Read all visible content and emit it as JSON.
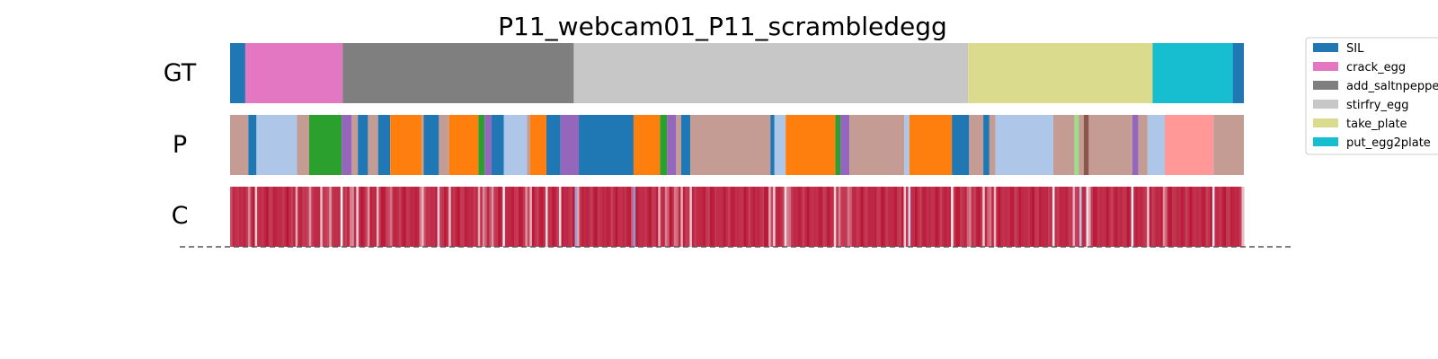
{
  "chart_data": {
    "type": "segmentation_timeline",
    "title": "P11_webcam01_P11_scrambledegg",
    "rows": [
      "GT",
      "P",
      "C"
    ],
    "x_range": [
      0,
      1000
    ],
    "legend": {
      "placement": "top-right",
      "entries": [
        {
          "label": "SIL",
          "color": "#1f77b4"
        },
        {
          "label": "crack_egg",
          "color": "#e377c2"
        },
        {
          "label": "add_saltnpepper",
          "color": "#7f7f7f"
        },
        {
          "label": "stirfry_egg",
          "color": "#c7c7c7"
        },
        {
          "label": "take_plate",
          "color": "#dbdb8d"
        },
        {
          "label": "put_egg2plate",
          "color": "#17becf"
        }
      ]
    },
    "gt_segments": [
      {
        "start": 0,
        "end": 15,
        "color": "#1f77b4"
      },
      {
        "start": 15,
        "end": 111,
        "color": "#e377c2"
      },
      {
        "start": 111,
        "end": 339,
        "color": "#7f7f7f"
      },
      {
        "start": 339,
        "end": 728,
        "color": "#c7c7c7"
      },
      {
        "start": 728,
        "end": 910,
        "color": "#dbdb8d"
      },
      {
        "start": 910,
        "end": 989,
        "color": "#17becf"
      },
      {
        "start": 989,
        "end": 1000,
        "color": "#1f77b4"
      }
    ],
    "p_segments": [
      {
        "start": 0,
        "end": 18,
        "color": "#c49c94"
      },
      {
        "start": 18,
        "end": 26,
        "color": "#1f77b4"
      },
      {
        "start": 26,
        "end": 66,
        "color": "#aec7e8"
      },
      {
        "start": 66,
        "end": 78,
        "color": "#c49c94"
      },
      {
        "start": 78,
        "end": 110,
        "color": "#2ca02c"
      },
      {
        "start": 110,
        "end": 120,
        "color": "#9467bd"
      },
      {
        "start": 120,
        "end": 126,
        "color": "#c49c94"
      },
      {
        "start": 126,
        "end": 136,
        "color": "#1f77b4"
      },
      {
        "start": 136,
        "end": 146,
        "color": "#c49c94"
      },
      {
        "start": 146,
        "end": 158,
        "color": "#1f77b4"
      },
      {
        "start": 158,
        "end": 189,
        "color": "#ff7f0e"
      },
      {
        "start": 189,
        "end": 191,
        "color": "#c49c94"
      },
      {
        "start": 191,
        "end": 206,
        "color": "#1f77b4"
      },
      {
        "start": 206,
        "end": 216,
        "color": "#c49c94"
      },
      {
        "start": 216,
        "end": 245,
        "color": "#ff7f0e"
      },
      {
        "start": 245,
        "end": 251,
        "color": "#2ca02c"
      },
      {
        "start": 251,
        "end": 258,
        "color": "#9467bd"
      },
      {
        "start": 258,
        "end": 270,
        "color": "#1f77b4"
      },
      {
        "start": 270,
        "end": 293,
        "color": "#aec7e8"
      },
      {
        "start": 293,
        "end": 296,
        "color": "#c49c94"
      },
      {
        "start": 296,
        "end": 312,
        "color": "#ff7f0e"
      },
      {
        "start": 312,
        "end": 326,
        "color": "#1f77b4"
      },
      {
        "start": 326,
        "end": 344,
        "color": "#9467bd"
      },
      {
        "start": 344,
        "end": 398,
        "color": "#1f77b4"
      },
      {
        "start": 398,
        "end": 424,
        "color": "#ff7f0e"
      },
      {
        "start": 424,
        "end": 431,
        "color": "#2ca02c"
      },
      {
        "start": 431,
        "end": 440,
        "color": "#9467bd"
      },
      {
        "start": 440,
        "end": 445,
        "color": "#c49c94"
      },
      {
        "start": 445,
        "end": 454,
        "color": "#1f77b4"
      },
      {
        "start": 454,
        "end": 533,
        "color": "#c49c94"
      },
      {
        "start": 533,
        "end": 537,
        "color": "#1f77b4"
      },
      {
        "start": 537,
        "end": 548,
        "color": "#aec7e8"
      },
      {
        "start": 548,
        "end": 597,
        "color": "#ff7f0e"
      },
      {
        "start": 597,
        "end": 602,
        "color": "#2ca02c"
      },
      {
        "start": 602,
        "end": 611,
        "color": "#9467bd"
      },
      {
        "start": 611,
        "end": 665,
        "color": "#c49c94"
      },
      {
        "start": 665,
        "end": 670,
        "color": "#aec7e8"
      },
      {
        "start": 670,
        "end": 712,
        "color": "#ff7f0e"
      },
      {
        "start": 712,
        "end": 729,
        "color": "#1f77b4"
      },
      {
        "start": 729,
        "end": 743,
        "color": "#c49c94"
      },
      {
        "start": 743,
        "end": 749,
        "color": "#1f77b4"
      },
      {
        "start": 749,
        "end": 755,
        "color": "#c49c94"
      },
      {
        "start": 755,
        "end": 812,
        "color": "#aec7e8"
      },
      {
        "start": 812,
        "end": 833,
        "color": "#c49c94"
      },
      {
        "start": 833,
        "end": 837,
        "color": "#98df8a"
      },
      {
        "start": 837,
        "end": 842,
        "color": "#c49c94"
      },
      {
        "start": 842,
        "end": 847,
        "color": "#8c564b"
      },
      {
        "start": 847,
        "end": 890,
        "color": "#c49c94"
      },
      {
        "start": 890,
        "end": 896,
        "color": "#9467bd"
      },
      {
        "start": 896,
        "end": 905,
        "color": "#c49c94"
      },
      {
        "start": 905,
        "end": 922,
        "color": "#aec7e8"
      },
      {
        "start": 922,
        "end": 970,
        "color": "#ff9896"
      },
      {
        "start": 970,
        "end": 1000,
        "color": "#c49c94"
      }
    ],
    "confidence_colorscale": [
      "#3b4cc0",
      "#f7f7f7",
      "#b40426"
    ],
    "confidence_low_points": [
      {
        "x": 2,
        "v": 0.74
      },
      {
        "x": 18,
        "v": 0.55
      },
      {
        "x": 26,
        "v": 0.45
      },
      {
        "x": 66,
        "v": 0.55
      },
      {
        "x": 78,
        "v": 0.42
      },
      {
        "x": 90,
        "v": 0.62
      },
      {
        "x": 98,
        "v": 0.38
      },
      {
        "x": 110,
        "v": 0.5
      },
      {
        "x": 120,
        "v": 0.3
      },
      {
        "x": 126,
        "v": 0.45
      },
      {
        "x": 136,
        "v": 0.55
      },
      {
        "x": 146,
        "v": 0.52
      },
      {
        "x": 158,
        "v": 0.55
      },
      {
        "x": 189,
        "v": 0.4
      },
      {
        "x": 191,
        "v": 0.48
      },
      {
        "x": 206,
        "v": 0.45
      },
      {
        "x": 216,
        "v": 0.4
      },
      {
        "x": 245,
        "v": 0.5
      },
      {
        "x": 251,
        "v": 0.45
      },
      {
        "x": 258,
        "v": 0.42
      },
      {
        "x": 270,
        "v": 0.48
      },
      {
        "x": 293,
        "v": 0.52
      },
      {
        "x": 296,
        "v": 0.45
      },
      {
        "x": 312,
        "v": 0.5
      },
      {
        "x": 326,
        "v": 0.42
      },
      {
        "x": 341,
        "v": 0.2
      },
      {
        "x": 344,
        "v": 0.52
      },
      {
        "x": 398,
        "v": 0.45
      },
      {
        "x": 399,
        "v": 0.18
      },
      {
        "x": 424,
        "v": 0.45
      },
      {
        "x": 431,
        "v": 0.5
      },
      {
        "x": 440,
        "v": 0.48
      },
      {
        "x": 445,
        "v": 0.5
      },
      {
        "x": 454,
        "v": 0.45
      },
      {
        "x": 533,
        "v": 0.45
      },
      {
        "x": 537,
        "v": 0.5
      },
      {
        "x": 548,
        "v": 0.5
      },
      {
        "x": 551,
        "v": 0.4
      },
      {
        "x": 597,
        "v": 0.5
      },
      {
        "x": 602,
        "v": 0.5
      },
      {
        "x": 611,
        "v": 0.45
      },
      {
        "x": 665,
        "v": 0.42
      },
      {
        "x": 670,
        "v": 0.4
      },
      {
        "x": 712,
        "v": 0.45
      },
      {
        "x": 729,
        "v": 0.42
      },
      {
        "x": 743,
        "v": 0.5
      },
      {
        "x": 749,
        "v": 0.45
      },
      {
        "x": 755,
        "v": 0.5
      },
      {
        "x": 812,
        "v": 0.45
      },
      {
        "x": 833,
        "v": 0.35
      },
      {
        "x": 839,
        "v": 0.3
      },
      {
        "x": 845,
        "v": 0.18
      },
      {
        "x": 847,
        "v": 0.45
      },
      {
        "x": 890,
        "v": 0.48
      },
      {
        "x": 905,
        "v": 0.4
      },
      {
        "x": 922,
        "v": 0.45
      },
      {
        "x": 970,
        "v": 0.45
      },
      {
        "x": 999,
        "v": 0.6
      }
    ]
  }
}
